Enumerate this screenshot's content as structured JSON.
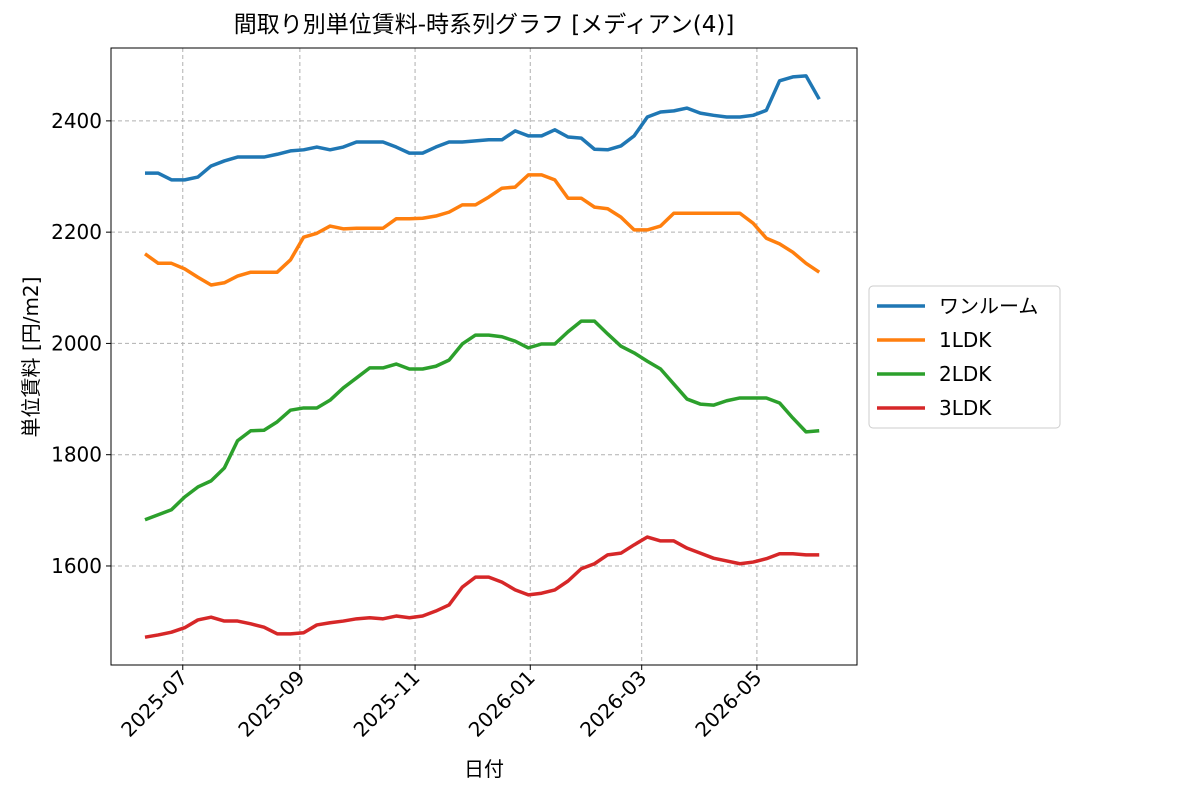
{
  "chart_data": {
    "type": "line",
    "title": "間取り別単位賃料-時系列グラフ [メディアン(4)]",
    "xlabel": "日付",
    "ylabel": "単位賃料 [円/m2]",
    "x": [
      20250,
      20257,
      20264,
      20271,
      20278,
      20285,
      20292,
      20299,
      20306,
      20313,
      20320,
      20327,
      20334,
      20341,
      20348,
      20355,
      20362,
      20369,
      20376,
      20383,
      20390,
      20397,
      20404,
      20411,
      20418,
      20425,
      20432,
      20439,
      20446,
      20453,
      20460,
      20467,
      20474,
      20481,
      20488,
      20495,
      20502,
      20509,
      20516,
      20523,
      20530,
      20537,
      20544,
      20551,
      20558,
      20565,
      20572,
      20579,
      20586,
      20593,
      20600,
      20607
    ],
    "series": [
      {
        "name": "ワンルーム",
        "color": "#1f77b4",
        "values": [
          2306,
          2306,
          2294,
          2294,
          2299,
          2319,
          2328,
          2335,
          2335,
          2335,
          2340,
          2346,
          2348,
          2353,
          2348,
          2353,
          2362,
          2362,
          2362,
          2353,
          2342,
          2342,
          2353,
          2362,
          2362,
          2364,
          2366,
          2366,
          2382,
          2373,
          2373,
          2384,
          2371,
          2369,
          2349,
          2348,
          2355,
          2373,
          2407,
          2416,
          2418,
          2423,
          2414,
          2410,
          2407,
          2407,
          2410,
          2419,
          2472,
          2479,
          2481,
          2439
        ]
      },
      {
        "name": "1LDK",
        "color": "#ff7f0e",
        "values": [
          2161,
          2144,
          2144,
          2134,
          2119,
          2105,
          2109,
          2121,
          2128,
          2128,
          2128,
          2150,
          2191,
          2198,
          2211,
          2206,
          2207,
          2207,
          2207,
          2224,
          2224,
          2225,
          2229,
          2236,
          2249,
          2249,
          2263,
          2279,
          2281,
          2303,
          2303,
          2294,
          2261,
          2261,
          2245,
          2242,
          2227,
          2204,
          2204,
          2211,
          2234,
          2234,
          2234,
          2234,
          2234,
          2234,
          2216,
          2189,
          2179,
          2164,
          2144,
          2128
        ]
      },
      {
        "name": "2LDK",
        "color": "#2ca02c",
        "values": [
          1683,
          1692,
          1701,
          1724,
          1742,
          1753,
          1776,
          1825,
          1843,
          1844,
          1859,
          1880,
          1884,
          1884,
          1898,
          1920,
          1938,
          1956,
          1956,
          1963,
          1954,
          1954,
          1959,
          1970,
          1999,
          2015,
          2015,
          2012,
          2004,
          1992,
          1999,
          1999,
          2021,
          2040,
          2040,
          2017,
          1995,
          1983,
          1968,
          1954,
          1927,
          1900,
          1891,
          1889,
          1897,
          1902,
          1902,
          1902,
          1893,
          1866,
          1841,
          1843
        ]
      },
      {
        "name": "3LDK",
        "color": "#d62728",
        "values": [
          1472,
          1476,
          1481,
          1489,
          1503,
          1508,
          1501,
          1501,
          1496,
          1490,
          1478,
          1478,
          1480,
          1494,
          1498,
          1501,
          1505,
          1507,
          1505,
          1510,
          1507,
          1510,
          1519,
          1530,
          1562,
          1580,
          1580,
          1571,
          1557,
          1548,
          1551,
          1557,
          1573,
          1595,
          1604,
          1620,
          1623,
          1638,
          1652,
          1645,
          1645,
          1632,
          1623,
          1614,
          1609,
          1604,
          1607,
          1613,
          1622,
          1622,
          1620,
          1620
        ]
      }
    ],
    "xlim": [
      20232,
      20627
    ],
    "xticks": [
      {
        "value": 20270,
        "label": "2025-07"
      },
      {
        "value": 20332,
        "label": "2025-09"
      },
      {
        "value": 20393,
        "label": "2025-11"
      },
      {
        "value": 20454,
        "label": "2026-01"
      },
      {
        "value": 20513,
        "label": "2026-03"
      },
      {
        "value": 20574,
        "label": "2026-05"
      }
    ],
    "ylim": [
      1422,
      2531
    ],
    "yticks": [
      1600,
      1800,
      2000,
      2200,
      2400
    ],
    "grid": true,
    "legend": "outside right"
  }
}
